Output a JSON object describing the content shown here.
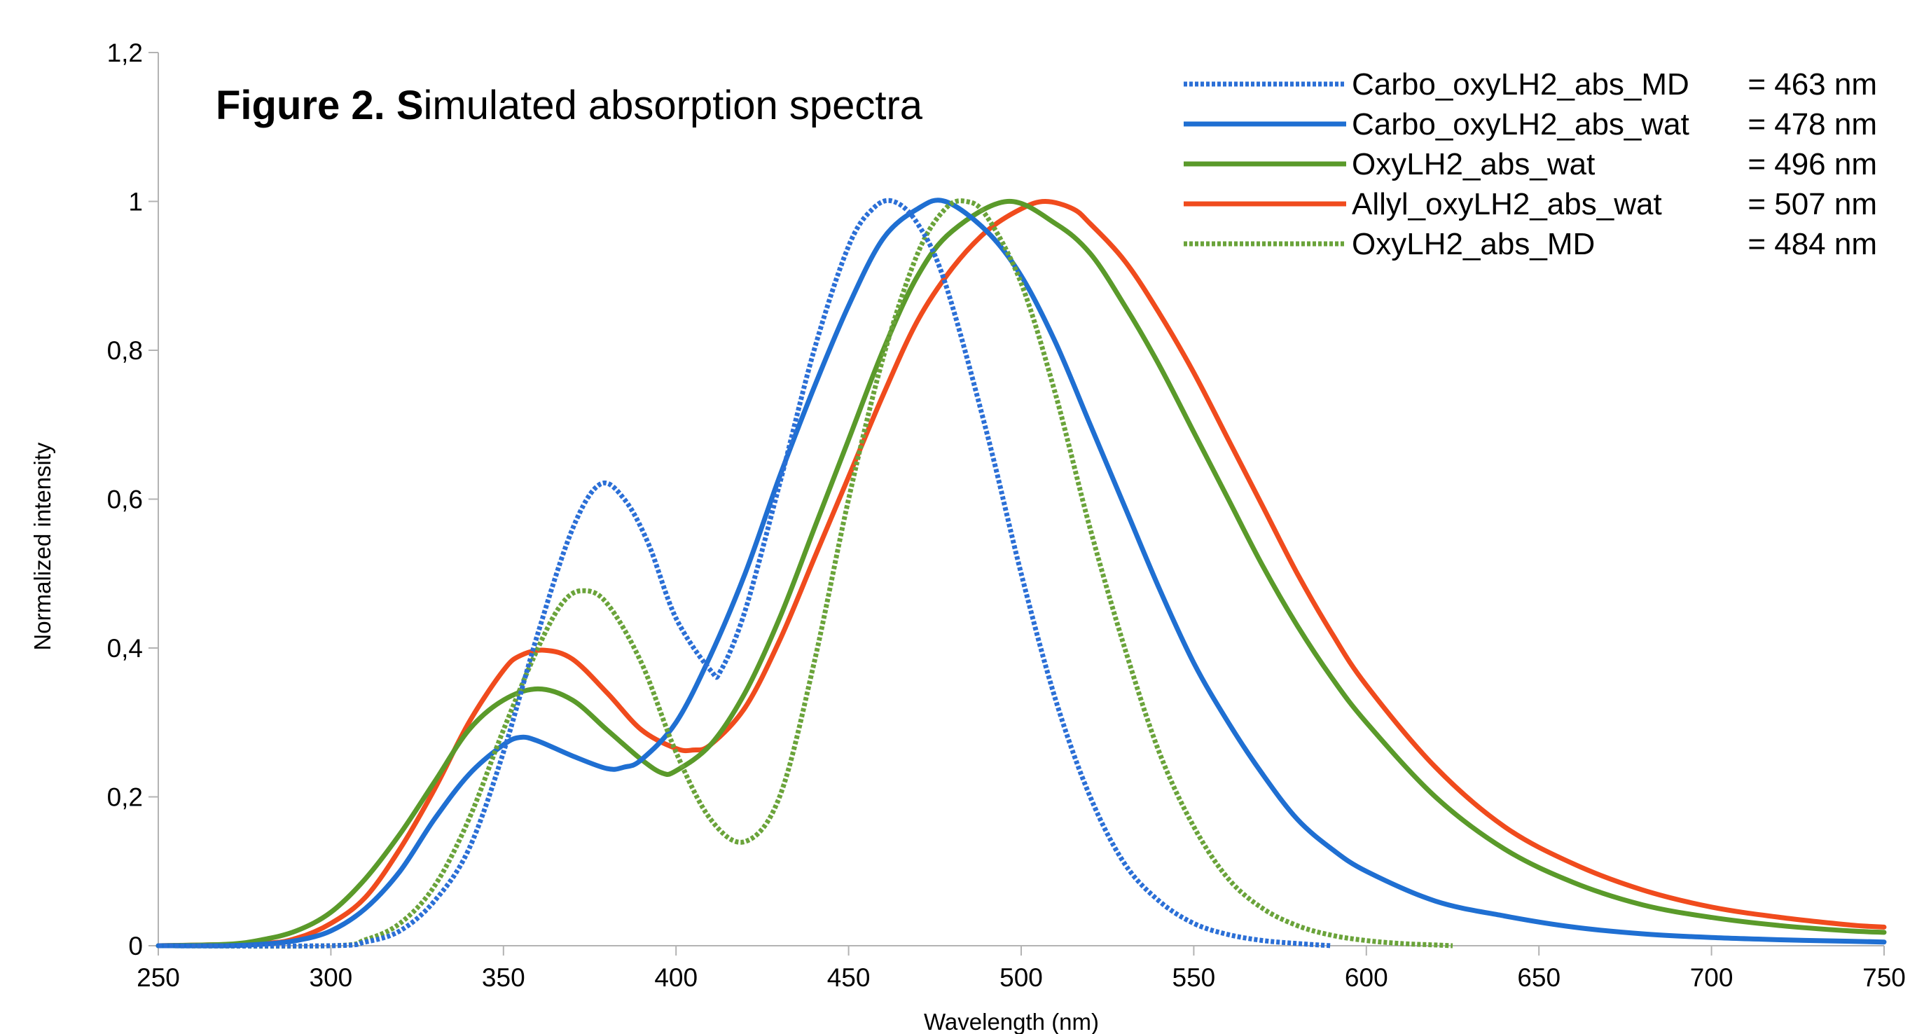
{
  "chart_data": {
    "type": "line",
    "title_bold": "Figure 2. S",
    "title_rest": "imulated absorption spectra",
    "xlabel": "Wavelength (nm)",
    "ylabel": "Normalized intensity",
    "xlim": [
      250,
      750
    ],
    "ylim": [
      0,
      1.2
    ],
    "xticks": [
      250,
      300,
      350,
      400,
      450,
      500,
      550,
      600,
      650,
      700,
      750
    ],
    "xtick_labels": [
      "250",
      "300",
      "350",
      "400",
      "450",
      "500",
      "550",
      "600",
      "650",
      "700",
      "750"
    ],
    "yticks": [
      0,
      0.2,
      0.4,
      0.6,
      0.8,
      1.0,
      1.2
    ],
    "ytick_labels": [
      "0",
      "0,2",
      "0,4",
      "0,6",
      "0,8",
      "1",
      "1,2"
    ],
    "grid": false,
    "legend_position": "top-right",
    "series": [
      {
        "name": "Carbo_oxyLH2_abs_MD",
        "legend_value": "= 463 nm",
        "color": "#2b6fd6",
        "style": "dotted",
        "x": [
          250,
          300,
          310,
          320,
          330,
          340,
          350,
          360,
          370,
          378,
          385,
          392,
          400,
          410,
          413,
          420,
          430,
          440,
          450,
          457,
          463,
          470,
          478,
          490,
          500,
          510,
          520,
          530,
          540,
          550,
          560,
          570,
          580,
          590
        ],
        "y": [
          0.0,
          0.0,
          0.005,
          0.02,
          0.06,
          0.13,
          0.26,
          0.42,
          0.56,
          0.62,
          0.6,
          0.54,
          0.44,
          0.37,
          0.37,
          0.45,
          0.62,
          0.8,
          0.94,
          0.99,
          1.0,
          0.97,
          0.89,
          0.69,
          0.5,
          0.33,
          0.2,
          0.11,
          0.06,
          0.03,
          0.015,
          0.007,
          0.003,
          0.0
        ]
      },
      {
        "name": "Carbo_oxyLH2_abs_wat",
        "legend_value": "= 478 nm",
        "color": "#1f6fd2",
        "style": "solid",
        "x": [
          250,
          270,
          280,
          290,
          300,
          310,
          320,
          330,
          340,
          350,
          355,
          360,
          370,
          380,
          385,
          390,
          400,
          410,
          420,
          430,
          440,
          450,
          460,
          470,
          478,
          490,
          500,
          510,
          520,
          530,
          540,
          550,
          560,
          570,
          580,
          590,
          600,
          620,
          640,
          660,
          680,
          700,
          720,
          740,
          750
        ],
        "y": [
          0.0,
          0.0,
          0.002,
          0.007,
          0.02,
          0.05,
          0.1,
          0.17,
          0.23,
          0.27,
          0.28,
          0.275,
          0.255,
          0.238,
          0.24,
          0.25,
          0.3,
          0.39,
          0.5,
          0.63,
          0.75,
          0.86,
          0.95,
          0.99,
          1.0,
          0.96,
          0.9,
          0.81,
          0.7,
          0.59,
          0.48,
          0.38,
          0.3,
          0.23,
          0.17,
          0.13,
          0.1,
          0.06,
          0.04,
          0.025,
          0.016,
          0.011,
          0.008,
          0.006,
          0.005
        ]
      },
      {
        "name": "OxyLH2_abs_wat",
        "legend_value": "= 496 nm",
        "color": "#5a9a2a",
        "style": "solid",
        "x": [
          250,
          270,
          280,
          290,
          300,
          310,
          320,
          330,
          340,
          350,
          360,
          370,
          380,
          390,
          396,
          400,
          410,
          420,
          430,
          440,
          450,
          460,
          470,
          480,
          496,
          510,
          520,
          530,
          540,
          550,
          560,
          570,
          580,
          590,
          600,
          620,
          640,
          660,
          680,
          700,
          720,
          740,
          750
        ],
        "y": [
          0.0,
          0.002,
          0.008,
          0.02,
          0.045,
          0.09,
          0.15,
          0.22,
          0.29,
          0.33,
          0.345,
          0.33,
          0.29,
          0.25,
          0.232,
          0.235,
          0.27,
          0.34,
          0.44,
          0.56,
          0.68,
          0.8,
          0.9,
          0.96,
          1.0,
          0.97,
          0.93,
          0.86,
          0.78,
          0.69,
          0.6,
          0.51,
          0.43,
          0.36,
          0.3,
          0.2,
          0.13,
          0.085,
          0.055,
          0.038,
          0.027,
          0.02,
          0.018
        ]
      },
      {
        "name": "Allyl_oxyLH2_abs_wat",
        "legend_value": "= 507 nm",
        "color": "#f04b1d",
        "style": "solid",
        "x": [
          250,
          280,
          290,
          300,
          310,
          320,
          330,
          340,
          350,
          355,
          362,
          370,
          380,
          390,
          400,
          405,
          410,
          420,
          430,
          440,
          450,
          460,
          470,
          480,
          490,
          500,
          507,
          515,
          520,
          530,
          540,
          550,
          560,
          570,
          580,
          590,
          600,
          620,
          640,
          660,
          680,
          700,
          720,
          740,
          750
        ],
        "y": [
          0.0,
          0.003,
          0.01,
          0.03,
          0.065,
          0.13,
          0.21,
          0.3,
          0.37,
          0.39,
          0.397,
          0.385,
          0.34,
          0.29,
          0.265,
          0.263,
          0.27,
          0.32,
          0.41,
          0.52,
          0.63,
          0.74,
          0.84,
          0.91,
          0.96,
          0.99,
          1.0,
          0.99,
          0.97,
          0.92,
          0.85,
          0.77,
          0.68,
          0.59,
          0.5,
          0.42,
          0.35,
          0.24,
          0.16,
          0.11,
          0.075,
          0.052,
          0.038,
          0.028,
          0.025
        ]
      },
      {
        "name": "OxyLH2_abs_MD",
        "legend_value": "= 484 nm",
        "color": "#6aa33a",
        "style": "dotted",
        "x": [
          250,
          300,
          310,
          320,
          330,
          340,
          350,
          360,
          367,
          373,
          380,
          390,
          400,
          410,
          420,
          430,
          440,
          450,
          460,
          470,
          478,
          484,
          490,
          500,
          510,
          520,
          530,
          540,
          550,
          560,
          570,
          580,
          590,
          600,
          610,
          620,
          625
        ],
        "y": [
          0.0,
          0.0,
          0.008,
          0.03,
          0.08,
          0.17,
          0.29,
          0.4,
          0.46,
          0.477,
          0.46,
          0.38,
          0.26,
          0.17,
          0.14,
          0.2,
          0.38,
          0.6,
          0.79,
          0.93,
          0.99,
          1.0,
          0.98,
          0.89,
          0.74,
          0.56,
          0.4,
          0.26,
          0.16,
          0.09,
          0.05,
          0.027,
          0.014,
          0.007,
          0.003,
          0.001,
          0.0
        ]
      }
    ]
  }
}
